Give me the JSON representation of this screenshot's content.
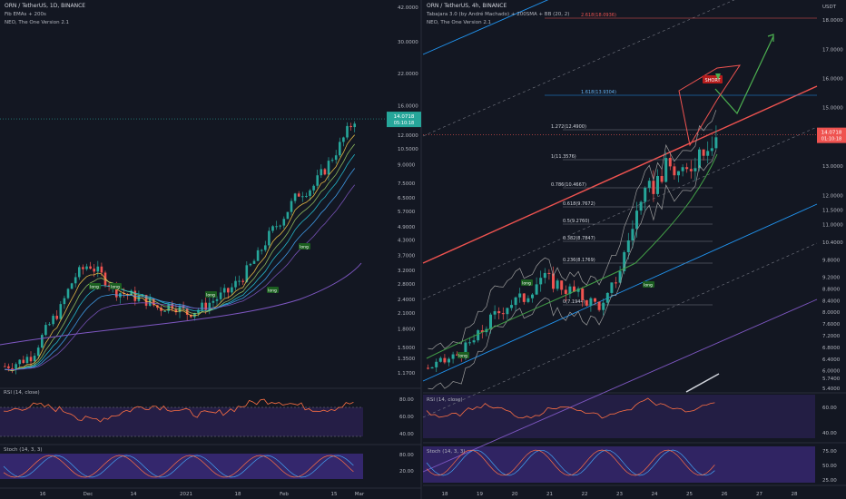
{
  "left_chart": {
    "title": "ORN / TetherUS, 1D, BINANCE",
    "indicators": [
      "Fib EMAs + 200s",
      "NEO, The One Version 2.1"
    ],
    "price_axis": [
      "42.0000",
      "30.0000",
      "22.0000",
      "16.0000",
      "12.0000",
      "10.5000",
      "9.0000",
      "7.5000",
      "6.5000",
      "5.7000",
      "4.9000",
      "4.3000",
      "3.7000",
      "3.2000",
      "2.8000",
      "2.4000",
      "2.1000",
      "1.8000",
      "1.5000",
      "1.3500",
      "1.1700"
    ],
    "last_price": "14.0718",
    "countdown": "05:10:18",
    "date_axis": [
      "16",
      "Dec",
      "14",
      "2021",
      "18",
      "Feb",
      "15",
      "Mar"
    ],
    "long_labels": [
      "long",
      "long",
      "long",
      "long",
      "long"
    ],
    "rsi_title": "RSI (14, close)",
    "rsi_axis": [
      "80.00",
      "60.00",
      "40.00"
    ],
    "stoch_title": "Stoch (14, 3, 3)",
    "stoch_axis": [
      "80.00",
      "20.00"
    ]
  },
  "right_chart": {
    "title": "ORN / TetherUS, 4h, BINANCE",
    "indicators": [
      "Tabajara 3.0 (by André Machado) + 200SMA + BB (20, 2)",
      "NEO, The One Version 2.1"
    ],
    "currency": "USDT",
    "price_axis": [
      "18.0000",
      "17.0000",
      "16.0000",
      "15.0000",
      "14.0000",
      "13.0000",
      "12.0000",
      "11.5000",
      "11.0000",
      "10.4000",
      "9.8000",
      "9.2000",
      "8.8000",
      "8.4000",
      "8.0000",
      "7.6000",
      "7.2000",
      "6.8000",
      "6.4000",
      "6.0000",
      "5.7400",
      "5.4000"
    ],
    "last_price": "14.0718",
    "countdown": "01:10:18",
    "date_axis": [
      "18",
      "19",
      "20",
      "21",
      "22",
      "23",
      "24",
      "25",
      "26",
      "27",
      "28"
    ],
    "fib_levels": [
      "2.618(18.0936)",
      "1.618(13.9304)",
      "1.272(12.4900)",
      "1(11.3576)",
      "0.786(10.4667)",
      "0.618(9.7672)",
      "0.5(9.2760)",
      "0.382(8.7847)",
      "0.236(8.1769)",
      "0(7.1944)"
    ],
    "short_label": "SHORT",
    "long_labels": [
      "long",
      "long",
      "long"
    ],
    "rsi_title": "RSI (14, close)",
    "rsi_axis": [
      "60.00",
      "40.00"
    ],
    "stoch_title": "Stoch (14, 3, 3)",
    "stoch_axis": [
      "75.00",
      "50.00",
      "25.00"
    ]
  },
  "colors": {
    "background": "#131722",
    "up": "#26a69a",
    "down": "#ef5350",
    "panel": "#1e1a35",
    "rsi_band": "#2a2150",
    "stoch_band": "#3b2a7a"
  },
  "chart_data": [
    {
      "type": "candlestick",
      "title": "ORN / TetherUS, 1D, BINANCE",
      "scale": "log",
      "ylim": [
        1.1,
        42
      ],
      "close_samples": [
        1.25,
        1.3,
        1.4,
        1.8,
        2.2,
        3.0,
        3.4,
        3.0,
        2.6,
        2.5,
        2.4,
        2.2,
        2.3,
        2.1,
        2.2,
        2.4,
        2.6,
        3.0,
        3.6,
        4.6,
        5.5,
        6.8,
        7.2,
        8.8,
        11.0,
        14.0718
      ],
      "last": 14.0718
    },
    {
      "type": "candlestick",
      "title": "ORN / TetherUS, 4h, BINANCE",
      "ylim": [
        5.4,
        18.5
      ],
      "close_samples": [
        6.1,
        6.3,
        6.6,
        7.1,
        7.8,
        8.3,
        8.5,
        9.2,
        9.0,
        8.7,
        8.4,
        8.2,
        9.5,
        11.4,
        12.3,
        13.0,
        12.6,
        13.6,
        14.0718
      ],
      "last": 14.0718
    }
  ]
}
